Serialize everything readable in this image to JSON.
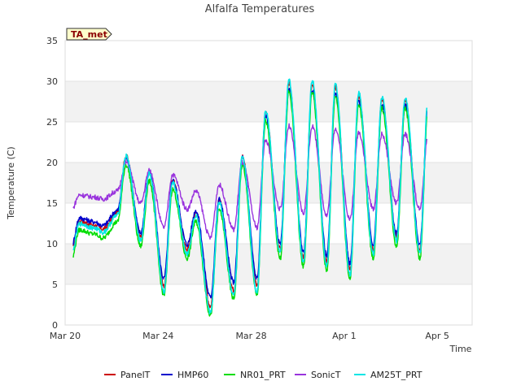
{
  "chart_data": {
    "type": "line",
    "title": "Alfalfa Temperatures",
    "xlabel": "Time",
    "ylabel": "Temperature (C)",
    "badge": "TA_met",
    "ylim": [
      0,
      35
    ],
    "xlim": [
      0,
      17.5
    ],
    "yticks": [
      0,
      5,
      10,
      15,
      20,
      25,
      30,
      35
    ],
    "xticks": [
      {
        "label": "Mar 20",
        "value": 0
      },
      {
        "label": "Mar 24",
        "value": 4
      },
      {
        "label": "Mar 28",
        "value": 8
      },
      {
        "label": "Apr 1",
        "value": 12
      },
      {
        "label": "Apr 5",
        "value": 16
      }
    ],
    "grid": true,
    "legend_position": "bottom",
    "day_minima": [
      8.5,
      12.0,
      13.5,
      10.5,
      4.5,
      9.0,
      2.0,
      4.0,
      4.5,
      9.0,
      8.0,
      7.5,
      6.5,
      9.0,
      10.5,
      9.0,
      8.0,
      10.5,
      11.5
    ],
    "day_maxima": [
      12.5,
      11.5,
      20.5,
      18.5,
      17.5,
      13.5,
      15.0,
      20.5,
      26.0,
      29.5,
      29.5,
      29.0,
      28.0,
      27.5,
      27.5,
      28.0,
      23.0,
      19.0
    ],
    "series": [
      {
        "name": "PanelT",
        "color": "#cc0000",
        "offset": 0.3,
        "scale": 1.0,
        "width": 1.4
      },
      {
        "name": "HMP60",
        "color": "#0000cc",
        "offset": 0.6,
        "scale": 0.93,
        "width": 1.4
      },
      {
        "name": "NR01_PRT",
        "color": "#00dd00",
        "offset": -0.8,
        "scale": 1.0,
        "width": 1.4
      },
      {
        "name": "SonicT",
        "color": "#9933dd",
        "offset": 3.0,
        "scale": 0.5,
        "width": 1.4
      },
      {
        "name": "AM25T_PRT",
        "color": "#00e5e5",
        "offset": 0.0,
        "scale": 1.04,
        "width": 1.6
      }
    ]
  }
}
